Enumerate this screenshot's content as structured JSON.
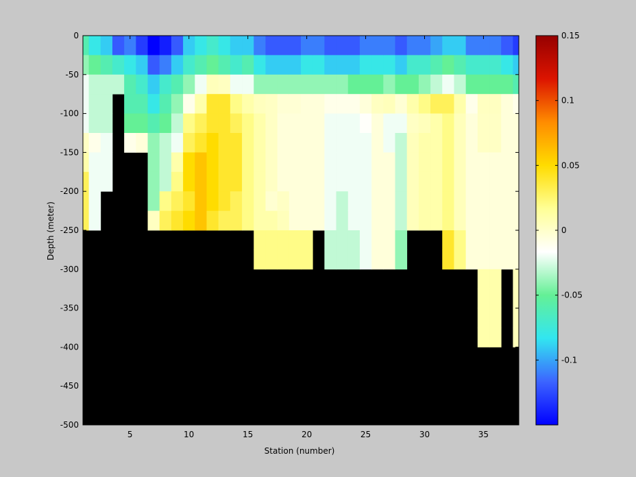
{
  "chart_data": {
    "type": "heatmap",
    "xlabel": "Station (number)",
    "ylabel": "Depth (meter)",
    "xlim": [
      1,
      38
    ],
    "ylim": [
      -500,
      0
    ],
    "xticks": [
      5,
      10,
      15,
      20,
      25,
      30,
      35
    ],
    "yticks": [
      0,
      -50,
      -100,
      -150,
      -200,
      -250,
      -300,
      -350,
      -400,
      -450,
      -500
    ],
    "x_start": 1,
    "y_top": 0,
    "cell_width": 1,
    "cell_depth": 25,
    "grid": false,
    "colorbar": {
      "position": "right",
      "range": [
        -0.15,
        0.15
      ],
      "ticks": [
        0.15,
        0.1,
        0.05,
        0,
        -0.05,
        -0.1
      ],
      "tick_labels": [
        "0.15",
        "0.1",
        "0.05",
        "0",
        "-0.05",
        "-0.1"
      ],
      "colors": [
        "#0000ff",
        "#3c64ff",
        "#32e6f0",
        "#64f096",
        "#ffffff",
        "#ffff96",
        "#ffdc00",
        "#ff8c00",
        "#dc1400",
        "#960000"
      ]
    },
    "land_color": "#000000",
    "bottom_depth_by_station": [
      250,
      250,
      200,
      75,
      150,
      150,
      250,
      250,
      250,
      250,
      250,
      250,
      250,
      250,
      250,
      300,
      300,
      300,
      300,
      300,
      250,
      300,
      300,
      300,
      300,
      300,
      300,
      300,
      250,
      250,
      250,
      300,
      300,
      300,
      400,
      400,
      300,
      400
    ],
    "values_by_station": [
      [
        -0.06,
        -0.04,
        -0.02,
        -0.02,
        -0.02,
        0.002,
        0.01,
        0.03,
        0.03,
        0.03
      ],
      [
        -0.08,
        -0.05,
        -0.03,
        -0.03,
        -0.03,
        -0.01,
        -0.02,
        -0.02,
        -0.02,
        -0.02
      ],
      [
        -0.09,
        -0.06,
        -0.03,
        -0.03,
        -0.03,
        -0.02,
        -0.02,
        -0.02
      ],
      [
        -0.12,
        -0.07,
        -0.03
      ],
      [
        -0.11,
        -0.08,
        -0.06,
        -0.06,
        -0.05,
        -0.01
      ],
      [
        -0.13,
        -0.09,
        -0.07,
        -0.06,
        -0.05,
        -0.005
      ],
      [
        -0.15,
        -0.12,
        -0.09,
        -0.08,
        -0.06,
        -0.04,
        -0.04,
        -0.04,
        -0.04,
        0.003
      ],
      [
        -0.14,
        -0.11,
        -0.07,
        -0.06,
        -0.05,
        -0.03,
        -0.03,
        -0.03,
        0.02,
        0.03
      ],
      [
        -0.12,
        -0.09,
        -0.06,
        -0.04,
        -0.03,
        -0.02,
        0.01,
        0.02,
        0.03,
        0.04
      ],
      [
        -0.09,
        -0.07,
        -0.04,
        -0.01,
        0.02,
        0.03,
        0.05,
        0.05,
        0.04,
        0.05
      ],
      [
        -0.08,
        -0.06,
        -0.02,
        0.01,
        0.03,
        0.04,
        0.06,
        0.06,
        0.06,
        0.06
      ],
      [
        -0.07,
        -0.05,
        0.005,
        0.04,
        0.04,
        0.05,
        0.05,
        0.05,
        0.05,
        0.04
      ],
      [
        -0.08,
        -0.06,
        0.003,
        0.04,
        0.04,
        0.04,
        0.04,
        0.04,
        0.04,
        0.03
      ],
      [
        -0.09,
        -0.07,
        -0.02,
        0.02,
        0.03,
        0.04,
        0.04,
        0.04,
        0.03,
        0.03
      ],
      [
        -0.09,
        -0.06,
        -0.02,
        0.01,
        0.02,
        0.02,
        0.02,
        0.02,
        0.02,
        0.02
      ],
      [
        -0.11,
        -0.08,
        -0.04,
        0.004,
        0.01,
        0.01,
        0.01,
        0.01,
        0.01,
        0.01,
        0.02,
        0.02
      ],
      [
        -0.12,
        -0.09,
        -0.04,
        0.002,
        0.002,
        0.002,
        0.002,
        0.002,
        -0.002,
        0.01,
        0.02,
        0.02
      ],
      [
        -0.12,
        -0.09,
        -0.04,
        -0.003,
        -0.005,
        -0.005,
        -0.005,
        -0.005,
        0.002,
        0.005,
        0.02,
        0.02
      ],
      [
        -0.12,
        -0.09,
        -0.04,
        -0.003,
        -0.005,
        -0.005,
        -0.005,
        -0.005,
        -0.005,
        -0.005,
        0.02,
        0.02
      ],
      [
        -0.11,
        -0.08,
        -0.04,
        -0.005,
        -0.005,
        -0.005,
        -0.005,
        -0.005,
        -0.005,
        -0.005,
        0.02,
        0.02
      ],
      [
        -0.11,
        -0.08,
        -0.04,
        -0.005,
        -0.005,
        -0.005,
        -0.005,
        -0.005,
        -0.005,
        -0.005
      ],
      [
        -0.12,
        -0.09,
        -0.04,
        -0.01,
        -0.02,
        -0.02,
        -0.02,
        -0.02,
        -0.02,
        -0.02,
        -0.03,
        -0.03
      ],
      [
        -0.12,
        -0.09,
        -0.04,
        -0.01,
        -0.02,
        -0.02,
        -0.02,
        -0.02,
        -0.03,
        -0.03,
        -0.03,
        -0.03
      ],
      [
        -0.12,
        -0.09,
        -0.05,
        -0.01,
        -0.02,
        -0.02,
        -0.02,
        -0.02,
        -0.02,
        -0.02,
        -0.03,
        -0.03
      ],
      [
        -0.11,
        -0.08,
        -0.05,
        -0.005,
        -0.015,
        -0.02,
        -0.02,
        -0.02,
        -0.02,
        -0.02,
        -0.02,
        -0.02
      ],
      [
        -0.11,
        -0.08,
        -0.05,
        0.003,
        -0.005,
        -0.005,
        -0.005,
        -0.005,
        -0.005,
        -0.005,
        -0.005,
        -0.005
      ],
      [
        -0.11,
        -0.08,
        -0.04,
        0.005,
        -0.02,
        -0.02,
        -0.005,
        -0.005,
        -0.005,
        -0.005,
        -0.005,
        -0.005
      ],
      [
        -0.12,
        -0.09,
        -0.05,
        -0.003,
        -0.02,
        -0.03,
        -0.03,
        -0.03,
        -0.03,
        -0.03,
        -0.04,
        -0.04
      ],
      [
        -0.11,
        -0.07,
        -0.05,
        0.01,
        0.002,
        0.005,
        0.005,
        0.005,
        0.005,
        0.005
      ],
      [
        -0.11,
        -0.07,
        -0.04,
        0.02,
        0.005,
        0.01,
        0.01,
        0.01,
        0.01,
        0.01
      ],
      [
        -0.1,
        -0.06,
        -0.03,
        0.03,
        0.01,
        0.01,
        0.01,
        0.01,
        0.01,
        0.01
      ],
      [
        -0.09,
        -0.05,
        -0.02,
        0.03,
        0.02,
        0.02,
        0.02,
        0.02,
        0.02,
        0.02,
        0.04,
        0.04
      ],
      [
        -0.09,
        -0.06,
        -0.03,
        0.01,
        0.005,
        0.005,
        0.005,
        0.005,
        0.005,
        0.005,
        0.02,
        0.02
      ],
      [
        -0.11,
        -0.07,
        -0.05,
        -0.01,
        -0.005,
        -0.005,
        -0.005,
        -0.005,
        -0.005,
        -0.005,
        -0.005,
        -0.005
      ],
      [
        -0.11,
        -0.07,
        -0.05,
        0.003,
        0.002,
        0.002,
        -0.005,
        -0.005,
        -0.005,
        -0.005,
        -0.005,
        -0.005,
        0.01,
        0.01,
        0.01,
        0.01
      ],
      [
        -0.11,
        -0.07,
        -0.05,
        0.003,
        0.002,
        0.002,
        -0.005,
        -0.005,
        -0.005,
        -0.005,
        -0.005,
        -0.005,
        0.01,
        0.01,
        0.01,
        0.01
      ],
      [
        -0.12,
        -0.08,
        -0.05,
        -0.005,
        -0.005,
        -0.005,
        -0.005,
        -0.005,
        -0.005,
        -0.005,
        -0.005,
        -0.005
      ],
      [
        -0.13,
        -0.09,
        -0.06,
        -0.01,
        -0.005,
        -0.005,
        -0.005,
        -0.005,
        -0.005,
        -0.005,
        -0.005,
        -0.005,
        0.005,
        0.005,
        0.005,
        0.005
      ]
    ]
  }
}
